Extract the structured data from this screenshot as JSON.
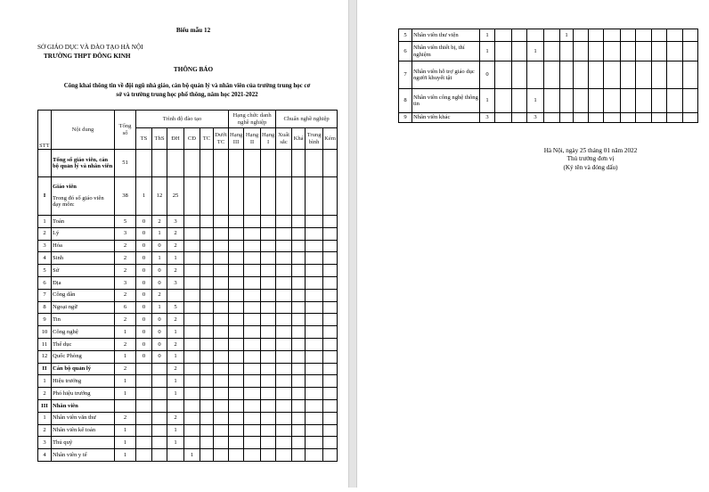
{
  "header": {
    "form_no": "Biểu mẫu 12",
    "department": "SỞ GIÁO DỤC VÀ ĐÀO TẠO HÀ NỘI",
    "school": "TRƯỜNG THPT ĐÔNG KINH",
    "title": "THÔNG BÁO",
    "subtitle_line1": "Công khai thông tin về đội ngũ nhà giáo, cán bộ quản lý và nhân viên của trường trung học cơ",
    "subtitle_line2": "sở và trường trung học phổ thông, năm học 2021-2022"
  },
  "table": {
    "headers": {
      "stt": "STT",
      "content": "Nội dung",
      "total": "Tổng số",
      "training": "Trình độ đào tạo",
      "rank": "Hạng chức danh nghề nghiệp",
      "standard": "Chuẩn nghề nghiệp",
      "sub": [
        "TS",
        "ThS",
        "ĐH",
        "CĐ",
        "TC",
        "Dưới TC",
        "Hạng III",
        "Hạng II",
        "Hạng I",
        "Xuất sắc",
        "Khá",
        "Trung bình",
        "Kém"
      ]
    },
    "rows_page1": [
      {
        "stt": "",
        "content": "Tổng số giáo viên, cán bộ quản lý và nhân viên",
        "bold": true,
        "cells": [
          "51",
          "",
          "",
          "",
          "",
          "",
          "",
          "",
          "",
          "",
          "",
          "",
          "",
          ""
        ]
      },
      {
        "stt": "I",
        "content": "Giáo viên",
        "note": "Trong đó số giáo viên dạy môn:",
        "bold": true,
        "cells": [
          "38",
          "1",
          "12",
          "25",
          "",
          "",
          "",
          "",
          "",
          "",
          "",
          "",
          "",
          ""
        ]
      },
      {
        "stt": "1",
        "content": "Toán",
        "cells": [
          "5",
          "0",
          "2",
          "3",
          "",
          "",
          "",
          "",
          "",
          "",
          "",
          "",
          "",
          ""
        ]
      },
      {
        "stt": "2",
        "content": "Lý",
        "cells": [
          "3",
          "0",
          "1",
          "2",
          "",
          "",
          "",
          "",
          "",
          "",
          "",
          "",
          "",
          ""
        ]
      },
      {
        "stt": "3",
        "content": "Hóa",
        "cells": [
          "2",
          "0",
          "0",
          "2",
          "",
          "",
          "",
          "",
          "",
          "",
          "",
          "",
          "",
          ""
        ]
      },
      {
        "stt": "4",
        "content": "Sinh",
        "cells": [
          "2",
          "0",
          "1",
          "1",
          "",
          "",
          "",
          "",
          "",
          "",
          "",
          "",
          "",
          ""
        ]
      },
      {
        "stt": "5",
        "content": "Sử",
        "cells": [
          "2",
          "0",
          "0",
          "2",
          "",
          "",
          "",
          "",
          "",
          "",
          "",
          "",
          "",
          ""
        ]
      },
      {
        "stt": "6",
        "content": "Địa",
        "cells": [
          "3",
          "0",
          "0",
          "3",
          "",
          "",
          "",
          "",
          "",
          "",
          "",
          "",
          "",
          ""
        ]
      },
      {
        "stt": "7",
        "content": "Công dân",
        "cells": [
          "2",
          "0",
          "2",
          "",
          "",
          "",
          "",
          "",
          "",
          "",
          "",
          "",
          "",
          ""
        ]
      },
      {
        "stt": "8",
        "content": "Ngoại ngữ",
        "cells": [
          "6",
          "0",
          "1",
          "5",
          "",
          "",
          "",
          "",
          "",
          "",
          "",
          "",
          "",
          ""
        ]
      },
      {
        "stt": "9",
        "content": "Tin",
        "cells": [
          "2",
          "0",
          "0",
          "2",
          "",
          "",
          "",
          "",
          "",
          "",
          "",
          "",
          "",
          ""
        ]
      },
      {
        "stt": "10",
        "content": "Công nghệ",
        "cells": [
          "1",
          "0",
          "0",
          "1",
          "",
          "",
          "",
          "",
          "",
          "",
          "",
          "",
          "",
          ""
        ]
      },
      {
        "stt": "11",
        "content": "Thể dục",
        "cells": [
          "2",
          "0",
          "0",
          "2",
          "",
          "",
          "",
          "",
          "",
          "",
          "",
          "",
          "",
          ""
        ]
      },
      {
        "stt": "12",
        "content": "Quốc Phòng",
        "cells": [
          "1",
          "0",
          "0",
          "1",
          "",
          "",
          "",
          "",
          "",
          "",
          "",
          "",
          "",
          ""
        ]
      },
      {
        "stt": "II",
        "content": "Cán bộ quản lý",
        "bold": true,
        "cells": [
          "2",
          "",
          "",
          "2",
          "",
          "",
          "",
          "",
          "",
          "",
          "",
          "",
          "",
          ""
        ]
      },
      {
        "stt": "1",
        "content": "Hiệu trưởng",
        "cells": [
          "1",
          "",
          "",
          "1",
          "",
          "",
          "",
          "",
          "",
          "",
          "",
          "",
          "",
          ""
        ]
      },
      {
        "stt": "2",
        "content": "Phó hiệu trưởng",
        "cells": [
          "1",
          "",
          "",
          "1",
          "",
          "",
          "",
          "",
          "",
          "",
          "",
          "",
          "",
          ""
        ]
      },
      {
        "stt": "III",
        "content": "Nhân viên",
        "bold": true,
        "cells": [
          "",
          "",
          "",
          "",
          "",
          "",
          "",
          "",
          "",
          "",
          "",
          "",
          "",
          ""
        ]
      },
      {
        "stt": "1",
        "content": "Nhân viên văn thư",
        "cells": [
          "2",
          "",
          "",
          "2",
          "",
          "",
          "",
          "",
          "",
          "",
          "",
          "",
          "",
          ""
        ]
      },
      {
        "stt": "2",
        "content": "Nhân viên kế toán",
        "cells": [
          "1",
          "",
          "",
          "1",
          "",
          "",
          "",
          "",
          "",
          "",
          "",
          "",
          "",
          ""
        ]
      },
      {
        "stt": "3",
        "content": "Thủ quỹ",
        "cells": [
          "1",
          "",
          "",
          "1",
          "",
          "",
          "",
          "",
          "",
          "",
          "",
          "",
          "",
          ""
        ]
      },
      {
        "stt": "4",
        "content": "Nhân viên y tế",
        "cells": [
          "1",
          "",
          "",
          "",
          "1",
          "",
          "",
          "",
          "",
          "",
          "",
          "",
          "",
          ""
        ]
      }
    ],
    "rows_page2": [
      {
        "stt": "5",
        "content": "Nhân viên thư viện",
        "cells": [
          "1",
          "",
          "",
          "",
          "",
          "1",
          "",
          "",
          "",
          "",
          "",
          "",
          "",
          ""
        ]
      },
      {
        "stt": "6",
        "content": "Nhân viên thiết bị, thí nghiệm",
        "cells": [
          "1",
          "",
          "",
          "1",
          "",
          "",
          "",
          "",
          "",
          "",
          "",
          "",
          "",
          ""
        ]
      },
      {
        "stt": "7",
        "content": "Nhân viên hỗ trợ giáo dục người khuyết tật",
        "cells": [
          "0",
          "",
          "",
          "",
          "",
          "",
          "",
          "",
          "",
          "",
          "",
          "",
          "",
          ""
        ]
      },
      {
        "stt": "8",
        "content": "Nhân viên công nghệ thông tin",
        "cells": [
          "1",
          "",
          "",
          "1",
          "",
          "",
          "",
          "",
          "",
          "",
          "",
          "",
          "",
          ""
        ]
      },
      {
        "stt": "9",
        "content": "Nhân viên khác",
        "cells": [
          "3",
          "",
          "",
          "3",
          "",
          "",
          "",
          "",
          "",
          "",
          "",
          "",
          "",
          ""
        ]
      }
    ]
  },
  "signature": {
    "place_date": "Hà Nội, ngày 25 tháng 01 năm 2022",
    "role": "Thủ trưởng đơn vị",
    "note": "(Ký tên và đóng dấu)"
  }
}
